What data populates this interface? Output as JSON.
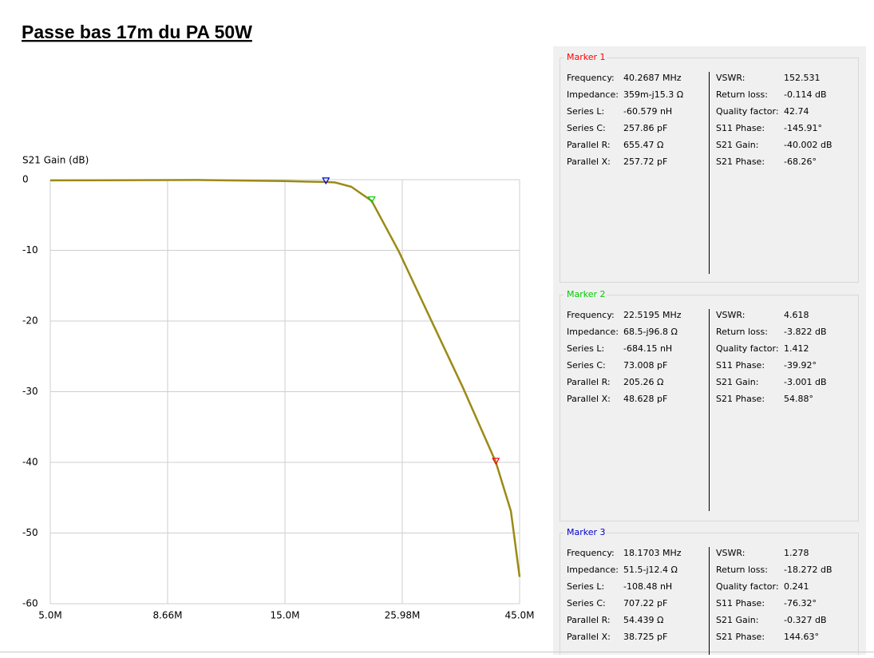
{
  "page_title": "Passe bas 17m du PA 50W",
  "chart_data": {
    "type": "line",
    "y_label": "S21 Gain (dB)",
    "log_x": true,
    "grid": true,
    "color": "#9b8a16",
    "x": [
      5000000,
      10000000,
      15000000,
      18170300,
      18980000,
      20460000,
      22519500,
      25590000,
      29700000,
      34500000,
      40268700,
      43200000,
      45000000
    ],
    "values": [
      -0.1,
      -0.05,
      -0.2,
      -0.327,
      -0.4,
      -1.0,
      -3.001,
      -10.2,
      -19.8,
      -29.4,
      -40.002,
      -46.9,
      -56.2
    ],
    "xlim": [
      5000000,
      45000000
    ],
    "xticks": [
      {
        "value": 5000000,
        "label": "5.0M"
      },
      {
        "value": 8660000,
        "label": "8.66M"
      },
      {
        "value": 15000000,
        "label": "15.0M"
      },
      {
        "value": 25980000,
        "label": "25.98M"
      },
      {
        "value": 45000000,
        "label": "45.0M"
      }
    ],
    "ylim": [
      -60,
      0
    ],
    "yticks": [
      0,
      -10,
      -20,
      -30,
      -40,
      -50,
      -60
    ],
    "markers": [
      {
        "color": "#ff0000",
        "x": 40268700,
        "y": -40.002
      },
      {
        "color": "#00cc00",
        "x": 22519500,
        "y": -3.001
      },
      {
        "color": "#0000cc",
        "x": 18170300,
        "y": -0.327
      }
    ]
  },
  "panels": [
    {
      "title": "Marker 1",
      "color": "#ff0000",
      "left": [
        [
          "Frequency:",
          "40.2687 MHz"
        ],
        [
          "Impedance:",
          "359m-j15.3 Ω"
        ],
        [
          "Series L:",
          "-60.579 nH"
        ],
        [
          "Series C:",
          "257.86 pF"
        ],
        [
          "Parallel R:",
          "655.47 Ω"
        ],
        [
          "Parallel X:",
          "257.72 pF"
        ]
      ],
      "right": [
        [
          "VSWR:",
          "152.531"
        ],
        [
          "Return loss:",
          "-0.114 dB"
        ],
        [
          "Quality factor:",
          "42.74"
        ],
        [
          "S11 Phase:",
          "-145.91°"
        ],
        [
          "S21 Gain:",
          "-40.002 dB"
        ],
        [
          "S21 Phase:",
          "-68.26°"
        ]
      ]
    },
    {
      "title": "Marker 2",
      "color": "#00cc00",
      "left": [
        [
          "Frequency:",
          "22.5195 MHz"
        ],
        [
          "Impedance:",
          "68.5-j96.8 Ω"
        ],
        [
          "Series L:",
          "-684.15 nH"
        ],
        [
          "Series C:",
          "73.008 pF"
        ],
        [
          "Parallel R:",
          "205.26 Ω"
        ],
        [
          "Parallel X:",
          "48.628 pF"
        ]
      ],
      "right": [
        [
          "VSWR:",
          "4.618"
        ],
        [
          "Return loss:",
          "-3.822 dB"
        ],
        [
          "Quality factor:",
          "1.412"
        ],
        [
          "S11 Phase:",
          "-39.92°"
        ],
        [
          "S21 Gain:",
          "-3.001 dB"
        ],
        [
          "S21 Phase:",
          "54.88°"
        ]
      ]
    },
    {
      "title": "Marker 3",
      "color": "#0000cc",
      "left": [
        [
          "Frequency:",
          "18.1703 MHz"
        ],
        [
          "Impedance:",
          "51.5-j12.4 Ω"
        ],
        [
          "Series L:",
          "-108.48 nH"
        ],
        [
          "Series C:",
          "707.22 pF"
        ],
        [
          "Parallel R:",
          "54.439 Ω"
        ],
        [
          "Parallel X:",
          "38.725 pF"
        ]
      ],
      "right": [
        [
          "VSWR:",
          "1.278"
        ],
        [
          "Return loss:",
          "-18.272 dB"
        ],
        [
          "Quality factor:",
          "0.241"
        ],
        [
          "S11 Phase:",
          "-76.32°"
        ],
        [
          "S21 Gain:",
          "-0.327 dB"
        ],
        [
          "S21 Phase:",
          "144.63°"
        ]
      ]
    }
  ]
}
